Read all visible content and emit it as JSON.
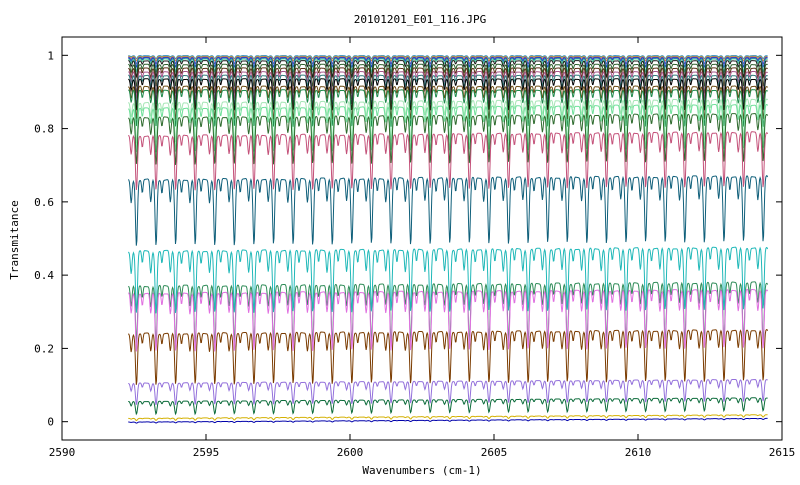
{
  "chart_data": {
    "type": "line",
    "title": "20101201_E01_116.JPG",
    "xlabel": "Wavenumbers (cm-1)",
    "ylabel": "Transmitance",
    "xlim": [
      2590,
      2615
    ],
    "ylim": [
      -0.05,
      1.05
    ],
    "xticks": [
      2590,
      2595,
      2600,
      2605,
      2610,
      2615
    ],
    "yticks": [
      0,
      0.2,
      0.4,
      0.6,
      0.8,
      1
    ],
    "ytick_labels": [
      "0",
      "0.2",
      "0.4",
      "0.6",
      "0.8",
      "1"
    ],
    "x_range": [
      2592.3,
      2614.5
    ],
    "line_period_cm1": 0.68,
    "grid": false,
    "legend": "none",
    "series": [
      {
        "baseline": 0.999,
        "depth": 0.008,
        "color": "#2f8fbf"
      },
      {
        "baseline": 0.997,
        "depth": 0.012,
        "color": "#d6a02a"
      },
      {
        "baseline": 0.995,
        "depth": 0.018,
        "color": "#6a4fb0"
      },
      {
        "baseline": 0.993,
        "depth": 0.025,
        "color": "#1a3fc9"
      },
      {
        "baseline": 0.99,
        "depth": 0.035,
        "color": "#3cbf8f"
      },
      {
        "baseline": 0.985,
        "depth": 0.045,
        "color": "#1b1b1b"
      },
      {
        "baseline": 0.975,
        "depth": 0.06,
        "color": "#2b5f2b"
      },
      {
        "baseline": 0.965,
        "depth": 0.07,
        "color": "#5a2f16"
      },
      {
        "baseline": 0.955,
        "depth": 0.075,
        "color": "#a6558a"
      },
      {
        "baseline": 0.945,
        "depth": 0.08,
        "color": "#2e7a7a"
      },
      {
        "baseline": 0.935,
        "depth": 0.085,
        "color": "#000000"
      },
      {
        "baseline": 0.915,
        "depth": 0.09,
        "color": "#6b4a12"
      },
      {
        "baseline": 0.905,
        "depth": 0.1,
        "color": "#1f8a4c"
      },
      {
        "baseline": 0.875,
        "depth": 0.11,
        "color": "#a5e6b5"
      },
      {
        "baseline": 0.86,
        "depth": 0.12,
        "color": "#6fe09a"
      },
      {
        "baseline": 0.835,
        "depth": 0.13,
        "color": "#2e6b2e"
      },
      {
        "baseline": 0.785,
        "depth": 0.15,
        "color": "#c4527a"
      },
      {
        "baseline": 0.665,
        "depth": 0.18,
        "color": "#0f5f7a"
      },
      {
        "baseline": 0.47,
        "depth": 0.17,
        "color": "#1fb8b8"
      },
      {
        "baseline": 0.375,
        "depth": 0.16,
        "color": "#2e8b57"
      },
      {
        "baseline": 0.355,
        "depth": 0.16,
        "color": "#e070e0"
      },
      {
        "baseline": 0.245,
        "depth": 0.14,
        "color": "#7a3b00"
      },
      {
        "baseline": 0.11,
        "depth": 0.06,
        "color": "#9370db"
      },
      {
        "baseline": 0.06,
        "depth": 0.035,
        "color": "#0b6b3a"
      },
      {
        "baseline": 0.014,
        "depth": 0.006,
        "color": "#d4b000"
      },
      {
        "baseline": 0.004,
        "depth": 0.003,
        "color": "#0000aa"
      }
    ]
  }
}
